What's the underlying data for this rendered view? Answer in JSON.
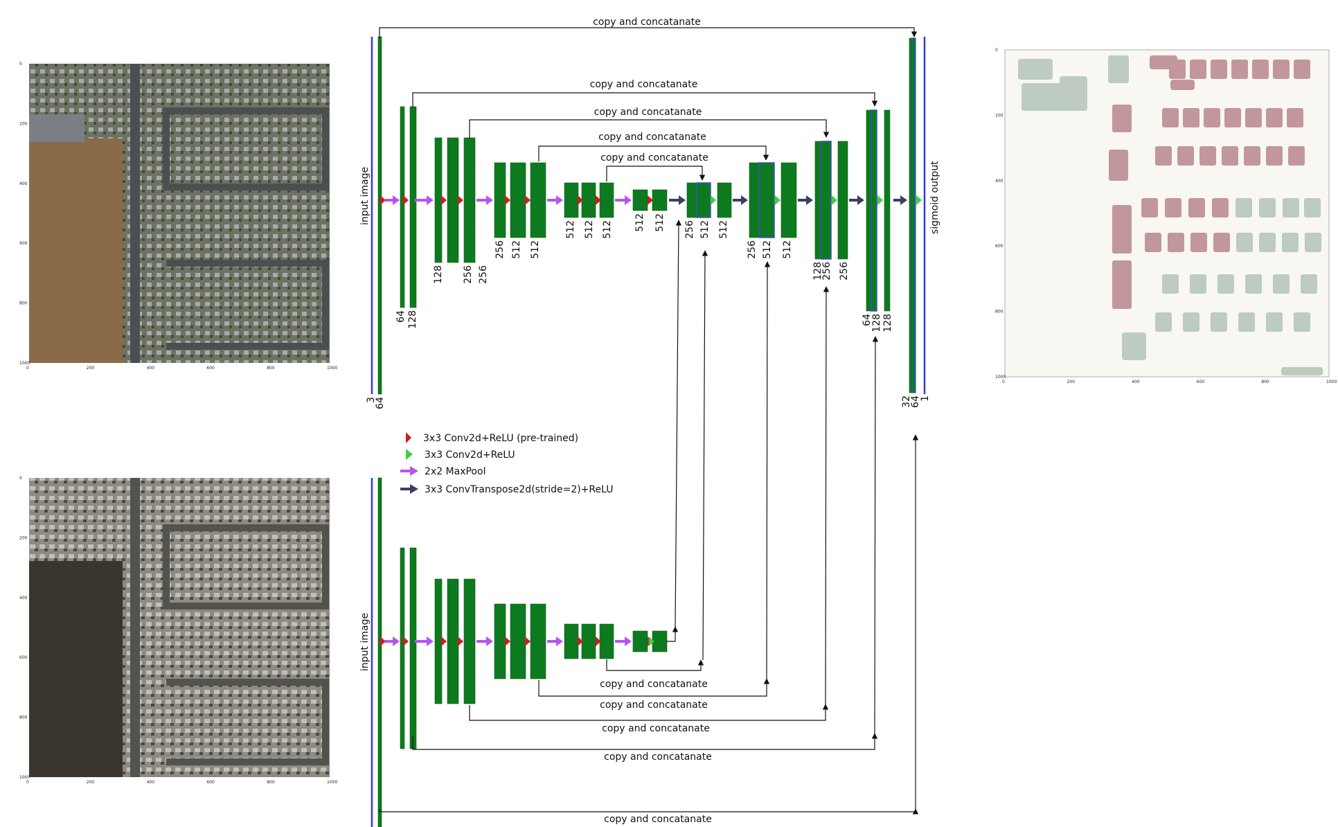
{
  "concat_label": "copy and concatanate",
  "input_label": "input image",
  "output_label": "sigmoid output",
  "legend": [
    {
      "text": "3x3 Conv2d+ReLU (pre-trained)",
      "color": "#cc1f1f",
      "shape": "red-triangle"
    },
    {
      "text": "3x3 Conv2d+ReLU",
      "color": "#44cc44",
      "shape": "green-triangle"
    },
    {
      "text": "2x2 MaxPool",
      "color": "#b455f0",
      "shape": "purple-arrow"
    },
    {
      "text": "3x3 ConvTranspose2d(stride=2)+ReLU",
      "color": "#3a3f66",
      "shape": "navy-arrow"
    }
  ],
  "top_encoder_channels": [
    "3",
    "64",
    "64",
    "128",
    "128",
    "256",
    "256",
    "256",
    "512",
    "512",
    "512",
    "512",
    "512",
    "512",
    "512"
  ],
  "decoder_channels": [
    "256",
    "512",
    "512",
    "256",
    "512",
    "512",
    "128",
    "256",
    "256",
    "64",
    "128",
    "128",
    "32",
    "64",
    "1"
  ],
  "tick_labels": [
    "0",
    "200",
    "400",
    "600",
    "800",
    "1000"
  ],
  "colors": {
    "block": "#0e7a1f",
    "block_edge": "#0a5c16",
    "input_line": "#2b3bd9",
    "skip_line": "#111111",
    "highlight": "#3b4fc0"
  }
}
